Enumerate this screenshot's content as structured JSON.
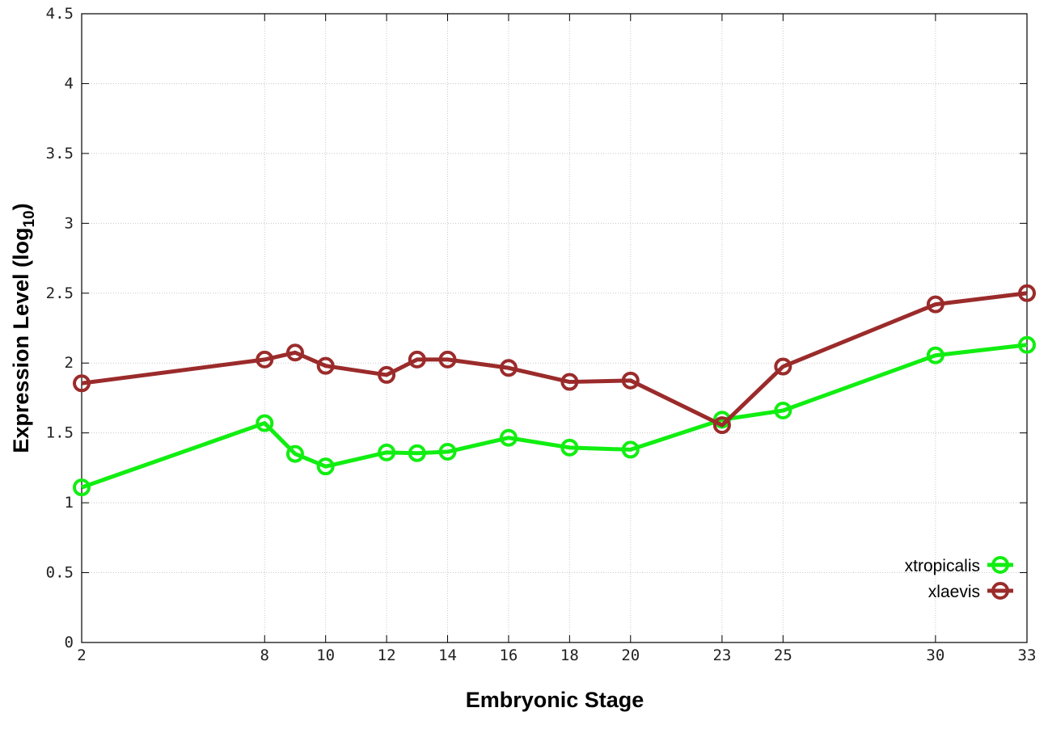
{
  "chart_data": {
    "type": "line",
    "xlabel": "Embryonic Stage",
    "ylabel_main": "Expression Level (log",
    "ylabel_sub": "10",
    "ylabel_close": ")",
    "xlim": [
      2,
      33
    ],
    "ylim": [
      0,
      4.5
    ],
    "x_ticks": [
      2,
      8,
      10,
      12,
      14,
      16,
      18,
      20,
      23,
      25,
      30,
      33
    ],
    "y_ticks": [
      {
        "value": 0,
        "label": "0"
      },
      {
        "value": 0.5,
        "label": "0.5"
      },
      {
        "value": 1,
        "label": "1"
      },
      {
        "value": 1.5,
        "label": "1.5"
      },
      {
        "value": 2,
        "label": "2"
      },
      {
        "value": 2.5,
        "label": "2.5"
      },
      {
        "value": 3,
        "label": "3"
      },
      {
        "value": 3.5,
        "label": "3.5"
      },
      {
        "value": 4,
        "label": "4"
      },
      {
        "value": 4.5,
        "label": "4.5"
      }
    ],
    "grid": true,
    "legend_position": "bottom-right",
    "series": [
      {
        "name": "xtropicalis",
        "color": "#11ee11",
        "marker": "open-circle",
        "x": [
          2,
          8,
          9,
          10,
          12,
          13,
          14,
          16,
          18,
          20,
          23,
          25,
          30,
          33
        ],
        "y": [
          1.11,
          1.57,
          1.35,
          1.26,
          1.36,
          1.355,
          1.365,
          1.465,
          1.395,
          1.38,
          1.595,
          1.66,
          2.055,
          2.13
        ]
      },
      {
        "name": "xlaevis",
        "color": "#9b2b2b",
        "marker": "open-circle",
        "x": [
          2,
          8,
          9,
          10,
          12,
          13,
          14,
          16,
          18,
          20,
          23,
          25,
          30,
          33
        ],
        "y": [
          1.855,
          2.025,
          2.075,
          1.98,
          1.915,
          2.025,
          2.025,
          1.965,
          1.865,
          1.875,
          1.555,
          1.975,
          2.42,
          2.5
        ]
      }
    ]
  }
}
